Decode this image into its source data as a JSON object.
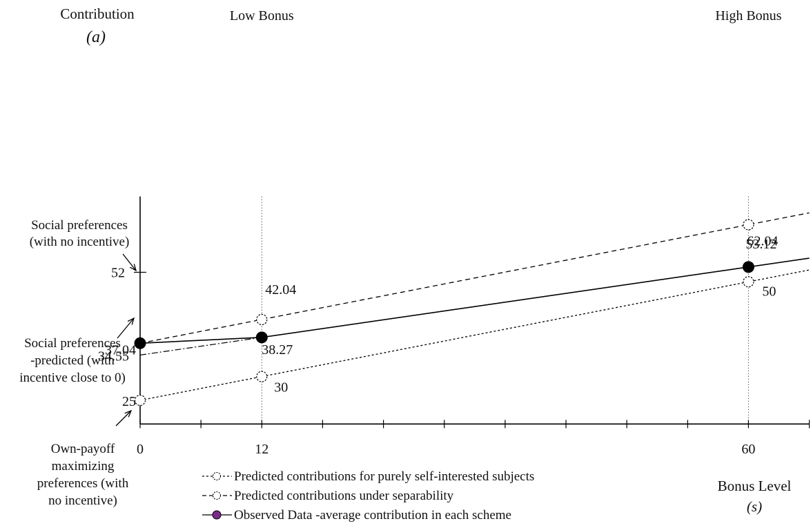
{
  "chart_data": {
    "type": "line",
    "panel_label": "(a)",
    "y_axis_title": "Contribution",
    "x_axis_title": "Bonus Level",
    "x_axis_symbol": "(s)",
    "y_tick_labels": [
      "52"
    ],
    "x_tick_labels": [
      "0",
      "12",
      "60"
    ],
    "x_range": [
      0,
      66
    ],
    "y_range": [
      20,
      68
    ],
    "reference_lines": [
      {
        "label": "Low Bonus",
        "x": 12
      },
      {
        "label": "High Bonus",
        "x": 60
      }
    ],
    "series": [
      {
        "name": "Predicted contributions for purely self-interested subjects",
        "style": "dotted",
        "marker": "open-circle",
        "points": [
          {
            "x": 0,
            "y": 25,
            "label": "25"
          },
          {
            "x": 12,
            "y": 30,
            "label": "30"
          },
          {
            "x": 60,
            "y": 50,
            "label": "50"
          }
        ]
      },
      {
        "name": "Predicted contributions under separability",
        "style": "dashed",
        "marker": "open-circle",
        "points": [
          {
            "x": 0,
            "y": 37.04,
            "label": ""
          },
          {
            "x": 12,
            "y": 42.04,
            "label": "42.04"
          },
          {
            "x": 60,
            "y": 62.04,
            "label": "62.04"
          }
        ]
      },
      {
        "name": "Observed Data -average contribution in each scheme",
        "style": "solid",
        "marker": "filled-circle",
        "points": [
          {
            "x": 0,
            "y": 37.04,
            "label": "37.04"
          },
          {
            "x": 12,
            "y": 38.27,
            "label": "38.27"
          },
          {
            "x": 60,
            "y": 53.12,
            "label": "53.12"
          }
        ]
      }
    ],
    "extrapolation": {
      "from_x": 0,
      "from_y": 34.55,
      "to_x": 12,
      "to_y": 38.27,
      "label": "34.55",
      "style": "dash-dot"
    },
    "annotations": [
      {
        "id": "social",
        "lines": [
          "Social preferences",
          "(with no incentive)"
        ]
      },
      {
        "id": "social-predicted",
        "lines": [
          "Social preferences",
          "-predicted (with",
          "incentive close to 0)"
        ]
      },
      {
        "id": "own-payoff",
        "lines": [
          "Own-payoff",
          "maximizing",
          "preferences (with",
          "no incentive)"
        ]
      }
    ],
    "legend_position": "bottom-center",
    "colors": {
      "observed_marker": "#000000",
      "legend_observed_marker": "#7b2a8a"
    }
  }
}
